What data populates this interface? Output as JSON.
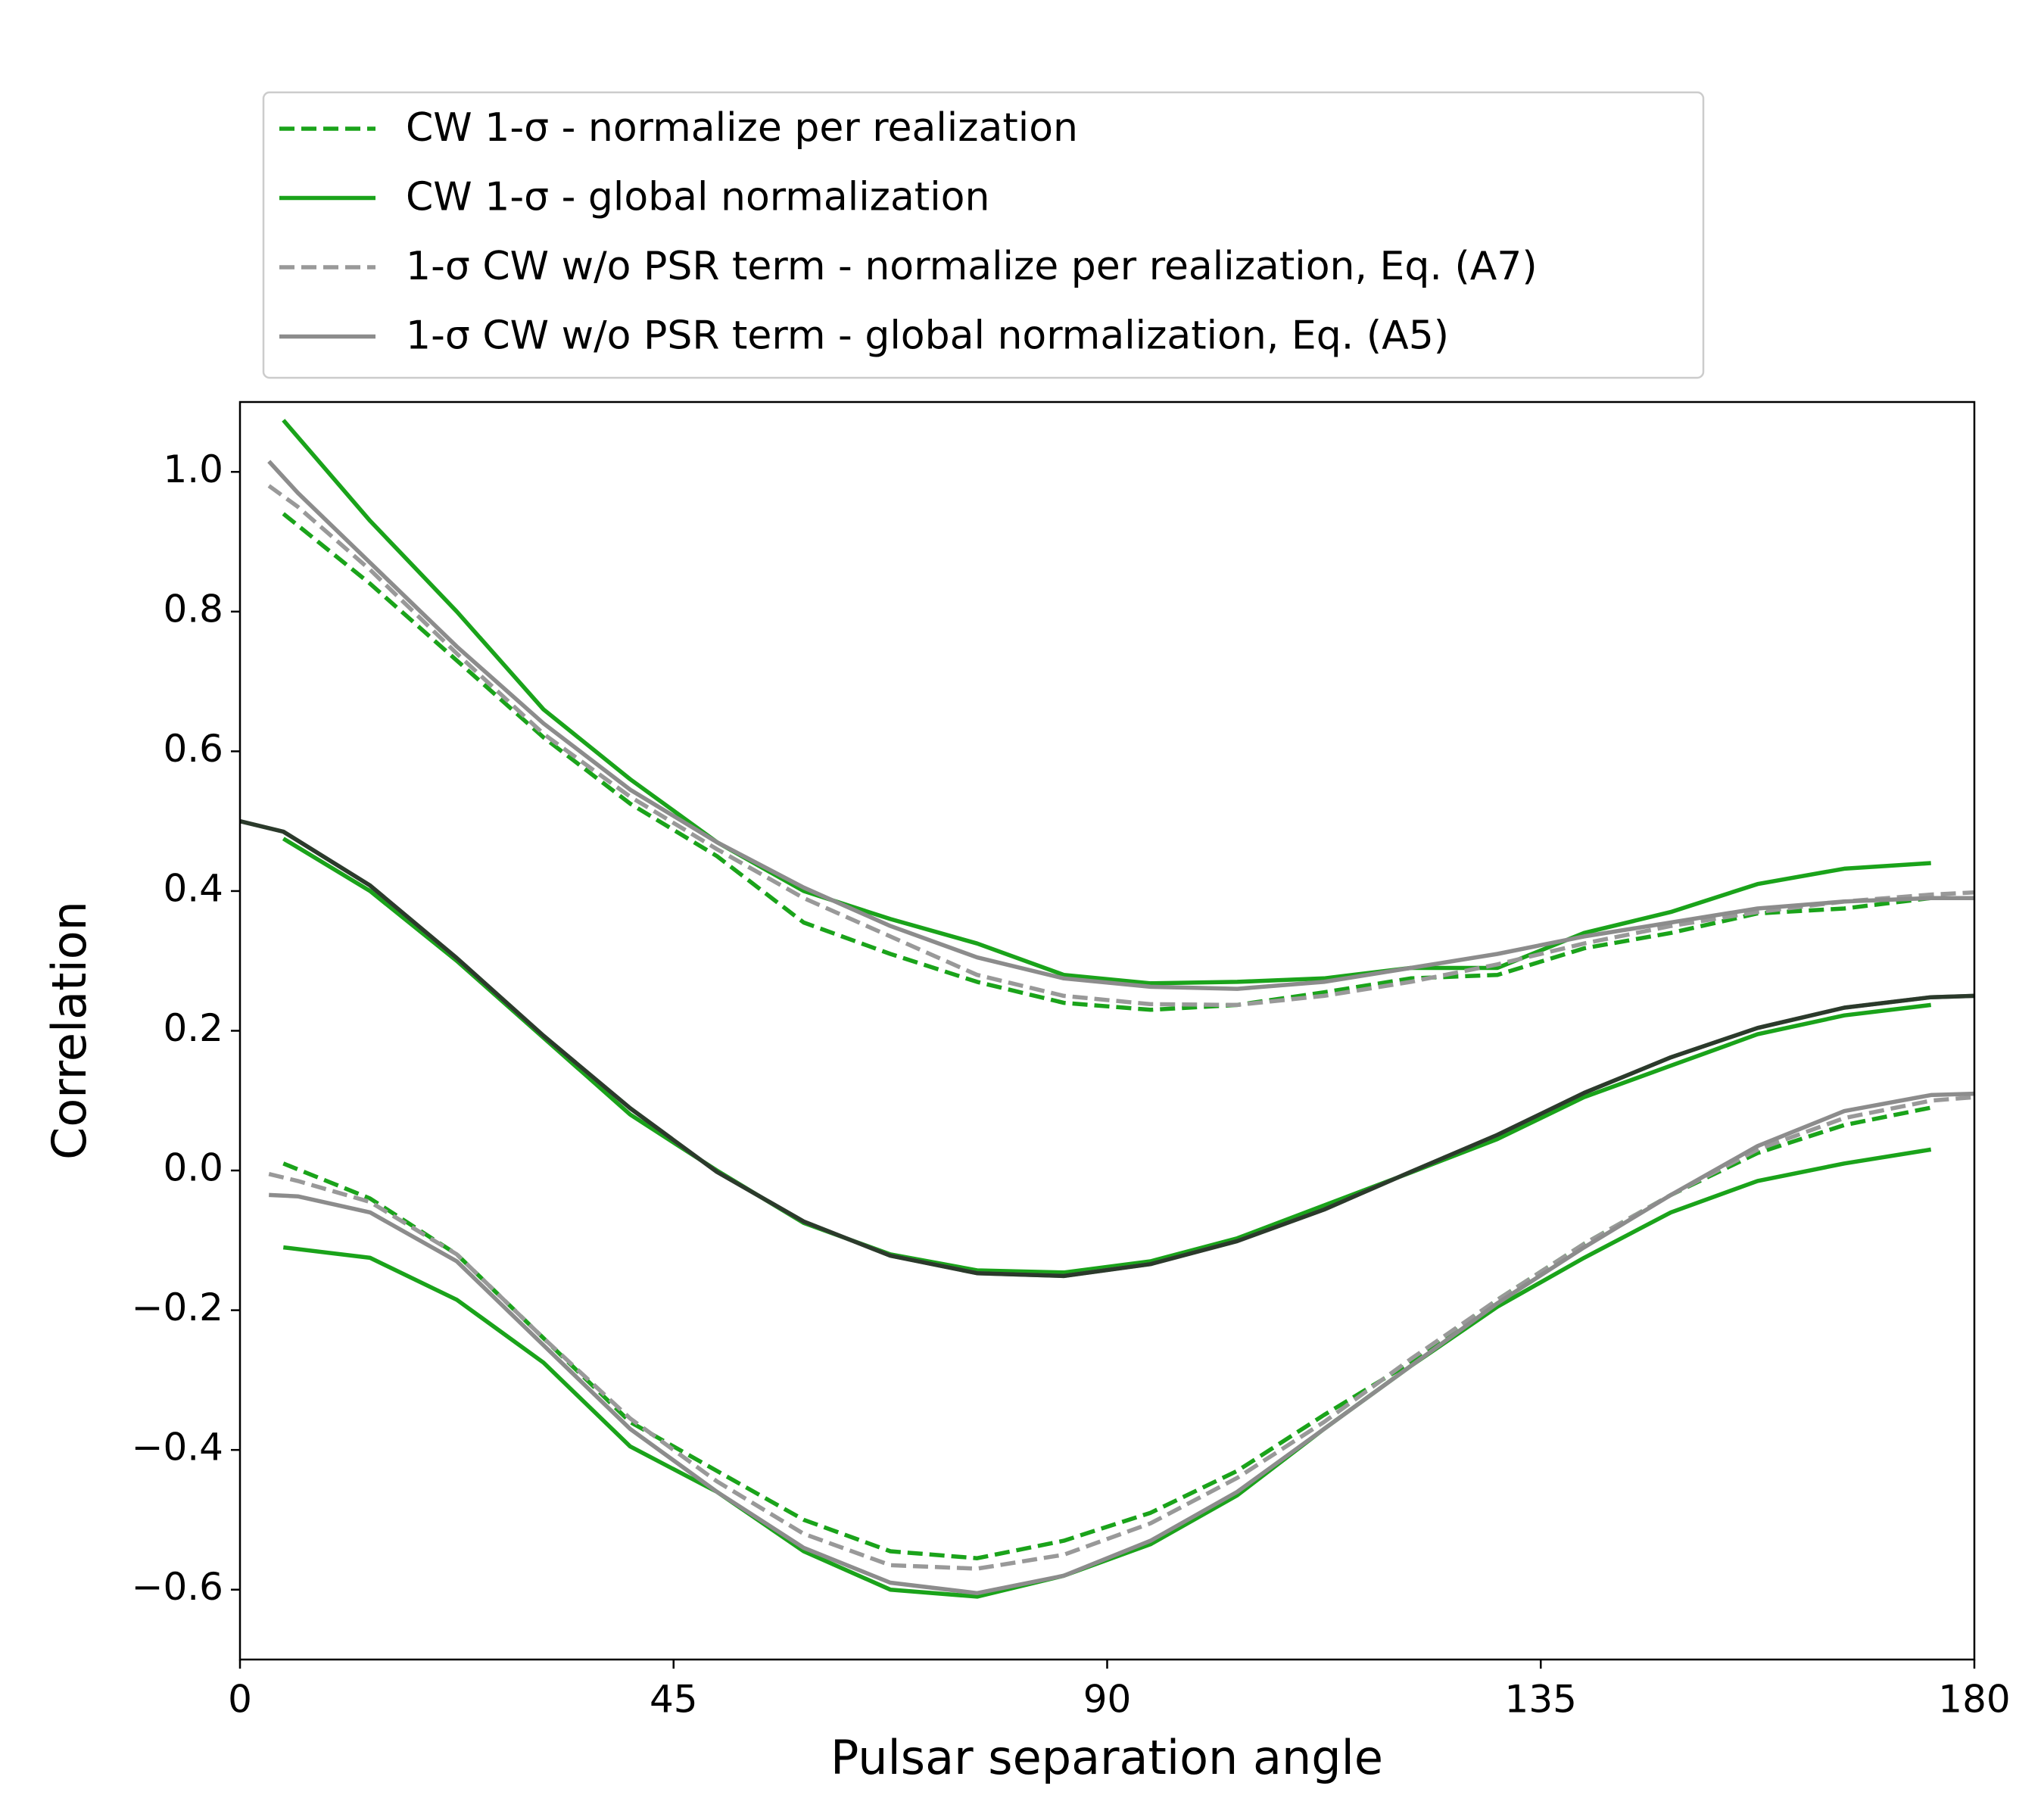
{
  "chart_data": {
    "type": "line",
    "xlabel": "Pulsar separation angle",
    "ylabel": "Correlation",
    "xlim": [
      0,
      180
    ],
    "xticks": [
      0,
      45,
      90,
      135,
      180
    ],
    "ylim": [
      -0.7,
      1.1
    ],
    "yticks": [
      {
        "value": -0.6,
        "label": "−0.6"
      },
      {
        "value": -0.4,
        "label": "−0.4"
      },
      {
        "value": -0.2,
        "label": "−0.2"
      },
      {
        "value": 0,
        "label": "0.0"
      },
      0.2,
      0.4,
      0.6,
      0.8,
      {
        "value": 1,
        "label": "1.0"
      }
    ],
    "grid": false,
    "legend": "above",
    "series": [
      {
        "name": "CW 1-σ - normalize per realization",
        "color": "#1aa31a",
        "dashed": true,
        "x": [
          4.5,
          13.5,
          22.5,
          31.5,
          40.5,
          49.5,
          58.5,
          67.5,
          76.5,
          85.5,
          94.5,
          103.5,
          112.5,
          121.5,
          130.5,
          139.5,
          148.5,
          157.5,
          166.5,
          175.5
        ],
        "values": [
          0.94,
          0.84,
          0.73,
          0.62,
          0.525,
          0.45,
          0.355,
          0.31,
          0.27,
          0.24,
          0.23,
          0.237,
          0.255,
          0.275,
          0.28,
          0.318,
          0.34,
          0.368,
          0.375,
          0.39
        ]
      },
      {
        "color": "#1aa31a",
        "dashed": true,
        "x": [
          4.5,
          13.5,
          22.5,
          31.5,
          40.5,
          49.5,
          58.5,
          67.5,
          76.5,
          85.5,
          94.5,
          103.5,
          112.5,
          121.5,
          130.5,
          139.5,
          148.5,
          157.5,
          166.5,
          175.5
        ],
        "values": [
          0.01,
          -0.04,
          -0.12,
          -0.24,
          -0.36,
          -0.43,
          -0.5,
          -0.545,
          -0.555,
          -0.53,
          -0.49,
          -0.43,
          -0.35,
          -0.275,
          -0.185,
          -0.105,
          -0.035,
          0.025,
          0.065,
          0.09
        ]
      },
      {
        "name": "CW 1-σ - global normalization",
        "color": "#1aa31a",
        "dashed": false,
        "x": [
          4.5,
          13.5,
          22.5,
          31.5,
          40.5,
          49.5,
          58.5,
          67.5,
          76.5,
          85.5,
          94.5,
          103.5,
          112.5,
          121.5,
          130.5,
          139.5,
          148.5,
          157.5,
          166.5,
          175.5
        ],
        "values": [
          1.074,
          0.93,
          0.8,
          0.66,
          0.56,
          0.47,
          0.4,
          0.36,
          0.325,
          0.28,
          0.268,
          0.27,
          0.275,
          0.29,
          0.29,
          0.34,
          0.37,
          0.41,
          0.432,
          0.44
        ]
      },
      {
        "color": "#1aa31a",
        "dashed": false,
        "x": [
          4.5,
          13.5,
          22.5,
          31.5,
          40.5,
          49.5,
          58.5,
          67.5,
          76.5,
          85.5,
          94.5,
          103.5,
          112.5,
          121.5,
          130.5,
          139.5,
          148.5,
          157.5,
          166.5,
          175.5
        ],
        "values": [
          -0.11,
          -0.125,
          -0.185,
          -0.275,
          -0.395,
          -0.46,
          -0.545,
          -0.6,
          -0.61,
          -0.58,
          -0.535,
          -0.465,
          -0.37,
          -0.28,
          -0.195,
          -0.125,
          -0.06,
          -0.015,
          0.01,
          0.03
        ]
      },
      {
        "color": "#1aa31a",
        "dashed": false,
        "x": [
          4.5,
          13.5,
          22.5,
          31.5,
          40.5,
          49.5,
          58.5,
          67.5,
          76.5,
          85.5,
          94.5,
          103.5,
          112.5,
          121.5,
          130.5,
          139.5,
          148.5,
          157.5,
          166.5,
          175.5
        ],
        "values": [
          0.475,
          0.4,
          0.3,
          0.19,
          0.08,
          0,
          -0.075,
          -0.12,
          -0.143,
          -0.146,
          -0.13,
          -0.097,
          -0.05,
          -0.003,
          0.045,
          0.105,
          0.15,
          0.195,
          0.222,
          0.237
        ]
      },
      {
        "name": "1-σ CW w/o PSR term - normalize per realization, Eq. (A7)",
        "color": "#999999",
        "dashed": true,
        "x": [
          3,
          6,
          13.5,
          22.5,
          31.5,
          40.5,
          49.5,
          58.5,
          67.5,
          76.5,
          85.5,
          94.5,
          103.5,
          112.5,
          121.5,
          130.5,
          139.5,
          148.5,
          157.5,
          166.5,
          175.5,
          180
        ],
        "values": [
          0.98,
          0.95,
          0.86,
          0.74,
          0.625,
          0.535,
          0.46,
          0.39,
          0.335,
          0.28,
          0.25,
          0.238,
          0.237,
          0.25,
          0.27,
          0.295,
          0.325,
          0.35,
          0.37,
          0.385,
          0.395,
          0.398
        ]
      },
      {
        "color": "#999999",
        "dashed": true,
        "x": [
          3,
          6,
          13.5,
          22.5,
          31.5,
          40.5,
          49.5,
          58.5,
          67.5,
          76.5,
          85.5,
          94.5,
          103.5,
          112.5,
          121.5,
          130.5,
          139.5,
          148.5,
          157.5,
          166.5,
          175.5,
          180
        ],
        "values": [
          -0.005,
          -0.015,
          -0.045,
          -0.12,
          -0.24,
          -0.355,
          -0.445,
          -0.52,
          -0.565,
          -0.57,
          -0.55,
          -0.505,
          -0.44,
          -0.36,
          -0.27,
          -0.185,
          -0.105,
          -0.035,
          0.03,
          0.075,
          0.1,
          0.105
        ]
      },
      {
        "name": "1-σ CW w/o PSR term - global normalization, Eq. (A5)",
        "color": "#8c8c8c",
        "dashed": false,
        "x": [
          3,
          6,
          13.5,
          22.5,
          31.5,
          40.5,
          49.5,
          58.5,
          67.5,
          76.5,
          85.5,
          94.5,
          103.5,
          112.5,
          121.5,
          130.5,
          139.5,
          148.5,
          157.5,
          166.5,
          175.5,
          180
        ],
        "values": [
          1.015,
          0.97,
          0.87,
          0.75,
          0.64,
          0.545,
          0.47,
          0.405,
          0.35,
          0.305,
          0.275,
          0.263,
          0.26,
          0.27,
          0.29,
          0.31,
          0.335,
          0.355,
          0.375,
          0.385,
          0.39,
          0.39
        ]
      },
      {
        "color": "#8c8c8c",
        "dashed": false,
        "x": [
          3,
          6,
          13.5,
          22.5,
          31.5,
          40.5,
          49.5,
          58.5,
          67.5,
          76.5,
          85.5,
          94.5,
          103.5,
          112.5,
          121.5,
          130.5,
          139.5,
          148.5,
          157.5,
          166.5,
          175.5,
          180
        ],
        "values": [
          -0.035,
          -0.037,
          -0.06,
          -0.13,
          -0.25,
          -0.37,
          -0.46,
          -0.54,
          -0.59,
          -0.605,
          -0.58,
          -0.53,
          -0.46,
          -0.37,
          -0.28,
          -0.19,
          -0.11,
          -0.035,
          0.035,
          0.085,
          0.108,
          0.11
        ]
      },
      {
        "color": "#8c8c8c",
        "dashed": false,
        "x": [
          0,
          4.5,
          13.5,
          22.5,
          31.5,
          40.5,
          49.5,
          58.5,
          67.5,
          76.5,
          85.5,
          94.5,
          103.5,
          112.5,
          121.5,
          130.5,
          139.5,
          148.5,
          157.5,
          166.5,
          175.5,
          180
        ],
        "values": [
          0.5,
          0.485,
          0.408,
          0.304,
          0.193,
          0.089,
          -0.002,
          -0.073,
          -0.122,
          -0.147,
          -0.151,
          -0.134,
          -0.101,
          -0.056,
          -0.002,
          0.051,
          0.111,
          0.162,
          0.204,
          0.233,
          0.248,
          0.25
        ]
      },
      {
        "color": "#2b3a2b",
        "dashed": false,
        "x": [
          0,
          4.5,
          13.5,
          22.5,
          31.5,
          40.5,
          49.5,
          58.5,
          67.5,
          76.5,
          85.5,
          94.5,
          103.5,
          112.5,
          121.5,
          130.5,
          139.5,
          148.5,
          157.5,
          166.5,
          175.5,
          180
        ],
        "values": [
          0.5,
          0.485,
          0.408,
          0.304,
          0.193,
          0.089,
          -0.002,
          -0.073,
          -0.122,
          -0.147,
          -0.151,
          -0.134,
          -0.101,
          -0.056,
          -0.002,
          0.051,
          0.111,
          0.162,
          0.204,
          0.233,
          0.248,
          0.25
        ]
      }
    ]
  }
}
